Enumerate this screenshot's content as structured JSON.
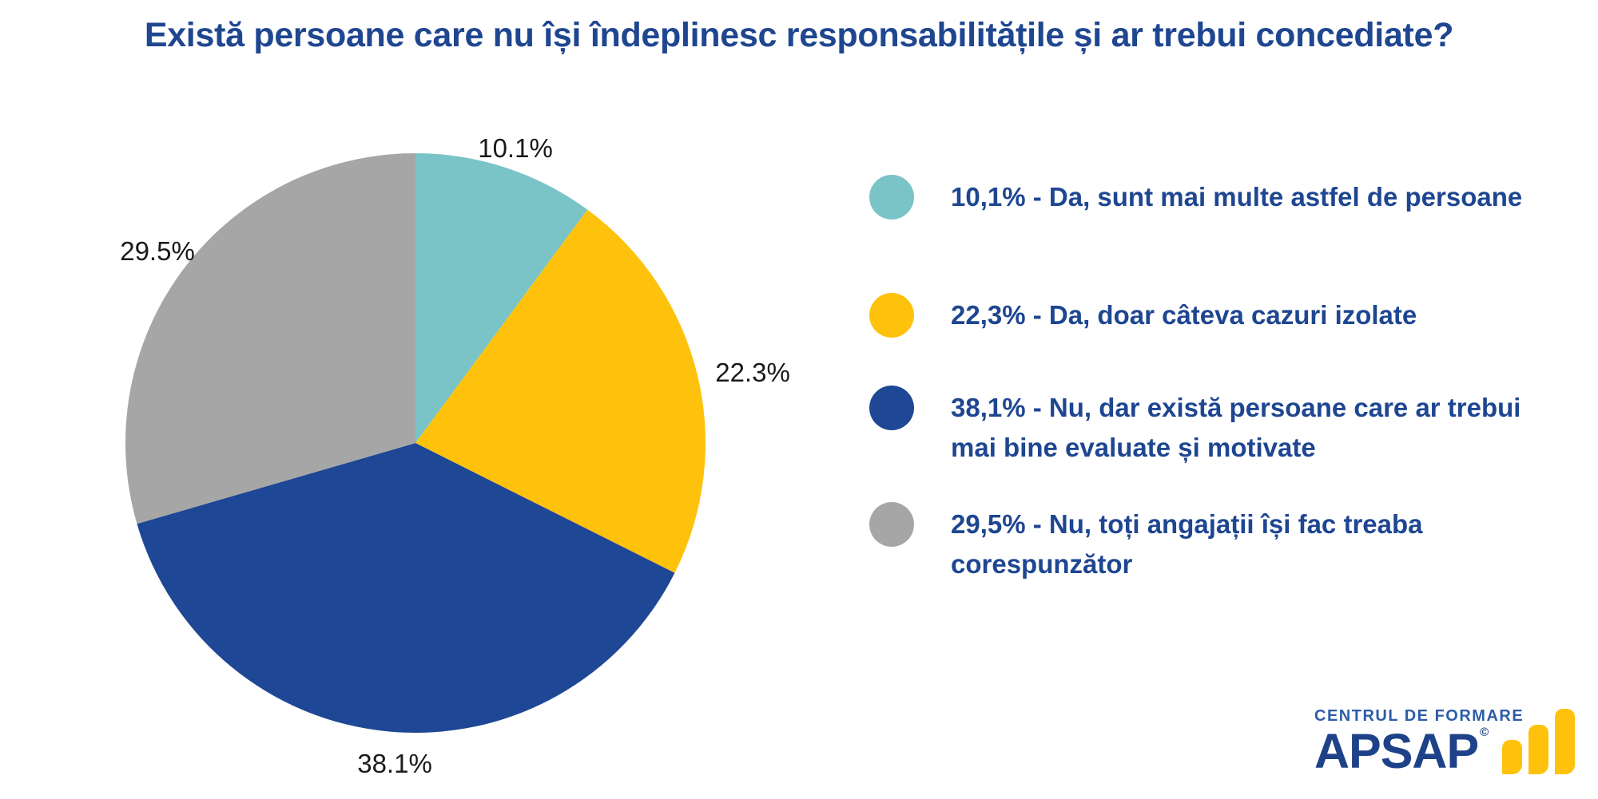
{
  "title": "Există persoane care nu își îndeplinesc responsabilitățile și ar trebui concediate?",
  "chart_data": {
    "type": "pie",
    "title": "Există persoane care nu își îndeplinesc responsabilitățile și ar trebui concediate?",
    "start_angle_deg": 0,
    "direction": "clockwise",
    "legend_position": "right",
    "slices": [
      {
        "value": 10.1,
        "pie_label": "10.1%",
        "legend_label": "10,1% - Da, sunt mai multe astfel de persoane",
        "answer": "Da, sunt mai multe astfel de persoane",
        "color": "#7AC3C6"
      },
      {
        "value": 22.3,
        "pie_label": "22.3%",
        "legend_label": "22,3% - Da, doar câteva cazuri izolate",
        "answer": "Da, doar câteva cazuri izolate",
        "color": "#FEC20D"
      },
      {
        "value": 38.1,
        "pie_label": "38.1%",
        "legend_label": "38,1% - Nu, dar există persoane care ar trebui mai bine evaluate și motivate",
        "answer": "Nu, dar există persoane care ar trebui mai bine evaluate și motivate",
        "color": "#1E4795"
      },
      {
        "value": 29.5,
        "pie_label": "29.5%",
        "legend_label": "29,5% - Nu, toți angajații își fac treaba corespunzător",
        "answer": "Nu, toți angajații își fac treaba corespunzător",
        "color": "#A6A6A6"
      }
    ]
  },
  "logo": {
    "tagline": "CENTRUL DE FORMARE",
    "brand": "APSAP",
    "copyright": "©",
    "bar_color": "#FEC20D"
  },
  "colors": {
    "background": "#FFFFFF",
    "title_text": "#1F4690",
    "legend_text": "#1E4691",
    "pie_label_text": "#1A1A1A"
  }
}
